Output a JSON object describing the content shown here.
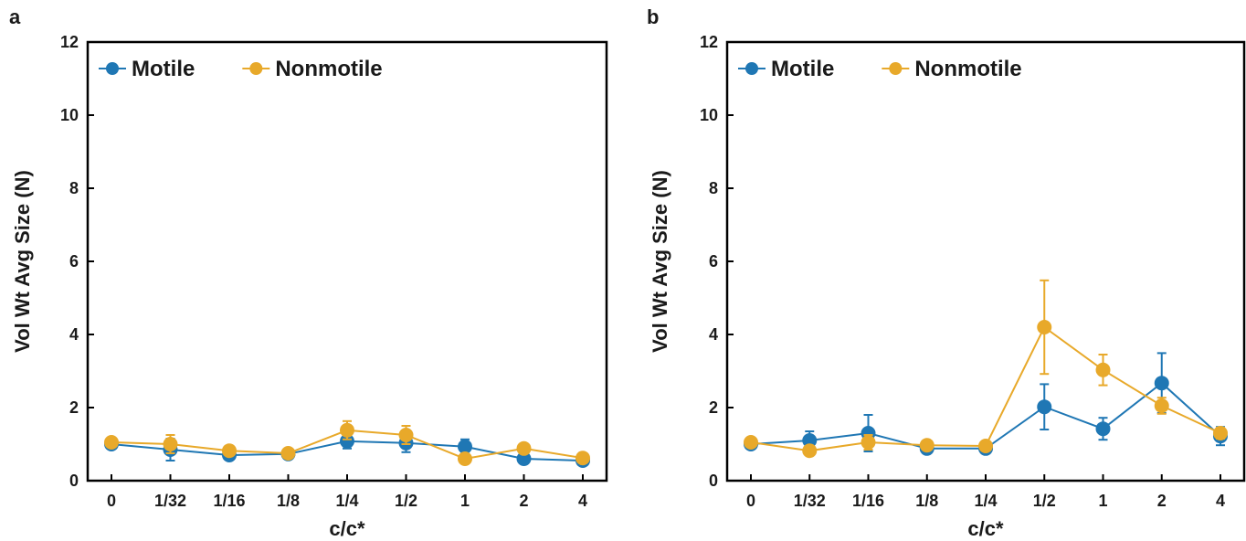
{
  "chart_data": [
    {
      "panel": "a",
      "type": "line",
      "xlabel": "c/c*",
      "ylabel": "Vol Wt Avg Size (N)",
      "categories": [
        "0",
        "1/32",
        "1/16",
        "1/8",
        "1/4",
        "1/2",
        "1",
        "2",
        "4"
      ],
      "ylim": [
        0,
        12
      ],
      "yticks": [
        "0",
        "2",
        "4",
        "6",
        "8",
        "10",
        "12"
      ],
      "legend_position": "top-left",
      "grid": false,
      "series": [
        {
          "name": "Motile",
          "color": "#1f77b4",
          "values": [
            1.0,
            0.85,
            0.7,
            0.73,
            1.08,
            1.03,
            0.93,
            0.6,
            0.55
          ],
          "errors": [
            0.08,
            0.3,
            0.08,
            0.1,
            0.2,
            0.25,
            0.2,
            0.08,
            0.08
          ]
        },
        {
          "name": "Nonmotile",
          "color": "#e8a92a",
          "values": [
            1.05,
            1.0,
            0.82,
            0.75,
            1.38,
            1.25,
            0.6,
            0.88,
            0.62
          ],
          "errors": [
            0.08,
            0.25,
            0.08,
            0.08,
            0.25,
            0.25,
            0.08,
            0.08,
            0.08
          ]
        }
      ]
    },
    {
      "panel": "b",
      "type": "line",
      "xlabel": "c/c*",
      "ylabel": "Vol Wt Avg Size (N)",
      "categories": [
        "0",
        "1/32",
        "1/16",
        "1/8",
        "1/4",
        "1/2",
        "1",
        "2",
        "4"
      ],
      "ylim": [
        0,
        12
      ],
      "yticks": [
        "0",
        "2",
        "4",
        "6",
        "8",
        "10",
        "12"
      ],
      "legend_position": "top-left",
      "grid": false,
      "series": [
        {
          "name": "Motile",
          "color": "#1f77b4",
          "values": [
            1.0,
            1.1,
            1.3,
            0.88,
            0.88,
            2.02,
            1.42,
            2.67,
            1.22
          ],
          "errors": [
            0.08,
            0.25,
            0.5,
            0.08,
            0.08,
            0.62,
            0.3,
            0.82,
            0.25
          ]
        },
        {
          "name": "Nonmotile",
          "color": "#e8a92a",
          "values": [
            1.05,
            0.82,
            1.05,
            0.97,
            0.95,
            4.2,
            3.03,
            2.05,
            1.3
          ],
          "errors": [
            0.08,
            0.08,
            0.2,
            0.08,
            0.08,
            1.28,
            0.42,
            0.22,
            0.15
          ]
        }
      ]
    }
  ]
}
